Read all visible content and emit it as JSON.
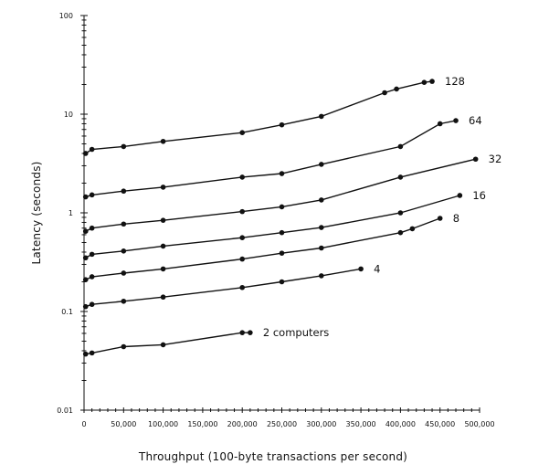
{
  "chart_data": {
    "type": "line",
    "title": "",
    "xlabel": "Throughput (100-byte transactions per second)",
    "ylabel": "Latency (seconds)",
    "xlim": [
      0,
      500000
    ],
    "ylim": [
      0.01,
      100
    ],
    "yscale": "log",
    "grid": false,
    "legend": "none; series labeled at line ends",
    "x_ticks": [
      0,
      50000,
      100000,
      150000,
      200000,
      250000,
      300000,
      350000,
      400000,
      450000,
      500000
    ],
    "x_tick_labels": [
      "0",
      "50,000",
      "100,000",
      "150,000",
      "200,000",
      "250,000",
      "300,000",
      "350,000",
      "400,000",
      "450,000",
      "500,000"
    ],
    "y_ticks": [
      0.01,
      0.1,
      1,
      10,
      100
    ],
    "y_tick_labels": [
      "0.01",
      "0.1",
      "1",
      "10",
      "100"
    ],
    "series": [
      {
        "name": "2 computers",
        "x": [
          2000,
          10000,
          50000,
          100000,
          200000,
          210000
        ],
        "y": [
          0.037,
          0.038,
          0.044,
          0.046,
          0.061,
          0.061
        ]
      },
      {
        "name": "4",
        "x": [
          2000,
          10000,
          50000,
          100000,
          200000,
          250000,
          300000,
          350000
        ],
        "y": [
          0.112,
          0.118,
          0.127,
          0.14,
          0.175,
          0.2,
          0.23,
          0.27
        ]
      },
      {
        "name": "8",
        "x": [
          2000,
          10000,
          50000,
          100000,
          200000,
          250000,
          300000,
          400000,
          415000,
          450000
        ],
        "y": [
          0.21,
          0.225,
          0.245,
          0.27,
          0.34,
          0.39,
          0.44,
          0.63,
          0.69,
          0.88
        ]
      },
      {
        "name": "16",
        "x": [
          2000,
          10000,
          50000,
          100000,
          200000,
          250000,
          300000,
          400000,
          475000
        ],
        "y": [
          0.35,
          0.38,
          0.41,
          0.46,
          0.56,
          0.63,
          0.71,
          1.0,
          1.5
        ]
      },
      {
        "name": "32",
        "x": [
          2000,
          10000,
          50000,
          100000,
          200000,
          250000,
          300000,
          400000,
          495000
        ],
        "y": [
          0.65,
          0.7,
          0.77,
          0.84,
          1.03,
          1.15,
          1.35,
          2.3,
          3.5
        ]
      },
      {
        "name": "64",
        "x": [
          2000,
          10000,
          50000,
          100000,
          200000,
          250000,
          300000,
          400000,
          450000,
          470000
        ],
        "y": [
          1.45,
          1.52,
          1.66,
          1.82,
          2.3,
          2.5,
          3.1,
          4.7,
          8.0,
          8.6
        ]
      },
      {
        "name": "128",
        "x": [
          2000,
          10000,
          50000,
          100000,
          200000,
          250000,
          300000,
          380000,
          395000,
          430000,
          440000
        ],
        "y": [
          4.0,
          4.4,
          4.7,
          5.3,
          6.5,
          7.8,
          9.5,
          16.5,
          18.0,
          21.0,
          21.5
        ]
      }
    ]
  }
}
